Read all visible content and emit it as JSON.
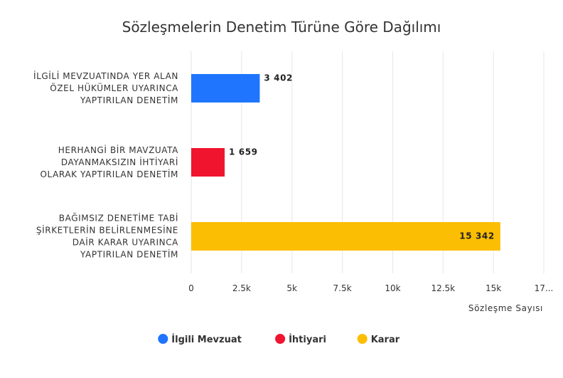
{
  "chart_data": {
    "type": "bar",
    "orientation": "horizontal",
    "title": "Sözleşmelerin Denetim Türüne Göre Dağılımı",
    "xlabel": "Sözleşme Sayısı",
    "ylabel": "",
    "xlim": [
      0,
      17500
    ],
    "ticks": [
      "0",
      "2.5k",
      "5k",
      "7.5k",
      "10k",
      "12.5k",
      "15k",
      "17..."
    ],
    "grid": true,
    "legend_position": "bottom",
    "categories": [
      [
        "İLGİLİ MEVZUATINDA YER ALAN",
        "ÖZEL HÜKÜMLER UYARINCA",
        "YAPTIRILAN DENETİM"
      ],
      [
        "HERHANGİ BİR MAVZUATA",
        "DAYANMAKSIZIN İHTİYARİ",
        "OLARAK YAPTIRILAN DENETİM"
      ],
      [
        "BAĞIMSIZ DENETİME TABİ",
        "ŞİRKETLERİN BELİRLENMESİNE",
        "DAİR KARAR UYARINCA",
        "YAPTIRILAN DENETİM"
      ]
    ],
    "series": [
      {
        "name": "İlgili Mevzuat",
        "color": "#1f75fe",
        "values": [
          3402,
          null,
          null
        ],
        "labels": [
          "3 402",
          "",
          ""
        ]
      },
      {
        "name": "İhtiyari",
        "color": "#f0142f",
        "values": [
          null,
          1659,
          null
        ],
        "labels": [
          "",
          "1 659",
          ""
        ]
      },
      {
        "name": "Karar",
        "color": "#fcbe03",
        "values": [
          null,
          null,
          15342
        ],
        "labels": [
          "",
          "",
          "15 342"
        ]
      }
    ]
  }
}
